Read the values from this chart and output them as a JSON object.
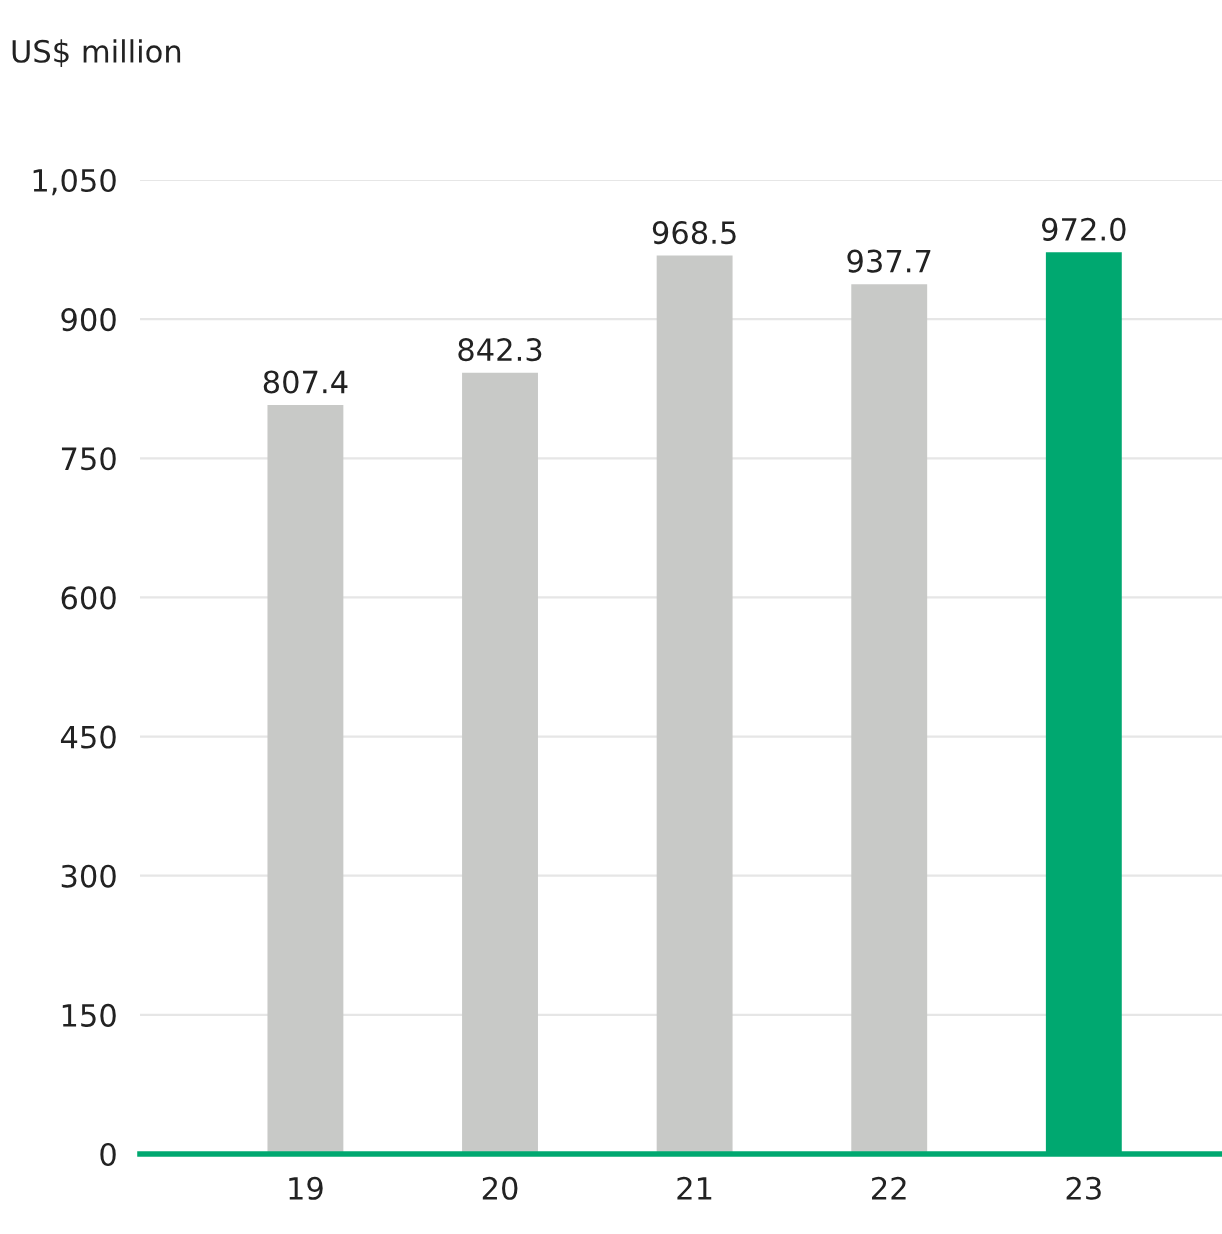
{
  "chart_data": {
    "type": "bar",
    "ylabel": "US$ million",
    "categories": [
      "19",
      "20",
      "21",
      "22",
      "23"
    ],
    "values": [
      807.4,
      842.3,
      968.5,
      937.7,
      972.0
    ],
    "value_labels": [
      "807.4",
      "842.3",
      "968.5",
      "937.7",
      "972.0"
    ],
    "colors": [
      "#c8c9c7",
      "#c8c9c7",
      "#c8c9c7",
      "#c8c9c7",
      "#00a870"
    ],
    "ylim": [
      0,
      1050
    ],
    "yticks": [
      0,
      150,
      300,
      450,
      600,
      750,
      900,
      {
        "value": 1050,
        "label": "1,050"
      }
    ],
    "grid": "y"
  }
}
